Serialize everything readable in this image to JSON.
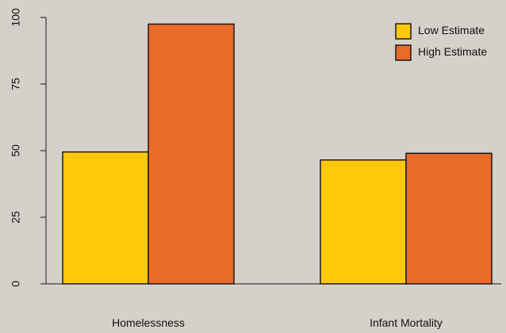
{
  "chart_data": {
    "type": "bar",
    "categories": [
      "Homelessness",
      "Infant Mortality"
    ],
    "series": [
      {
        "name": "Low Estimate",
        "values": [
          49.5,
          46.5
        ],
        "color": "#ffc90a"
      },
      {
        "name": "High Estimate",
        "values": [
          97.5,
          49
        ],
        "color": "#ea6a2a"
      }
    ],
    "ylim": [
      0,
      100
    ],
    "yticks": [
      0,
      25,
      50,
      75,
      100
    ],
    "title": "",
    "xlabel": "",
    "ylabel": "",
    "grid": false,
    "legend_position": "top-right",
    "background_color": "#d5d0ca",
    "bar_outline_color": "#1a1a1a"
  }
}
